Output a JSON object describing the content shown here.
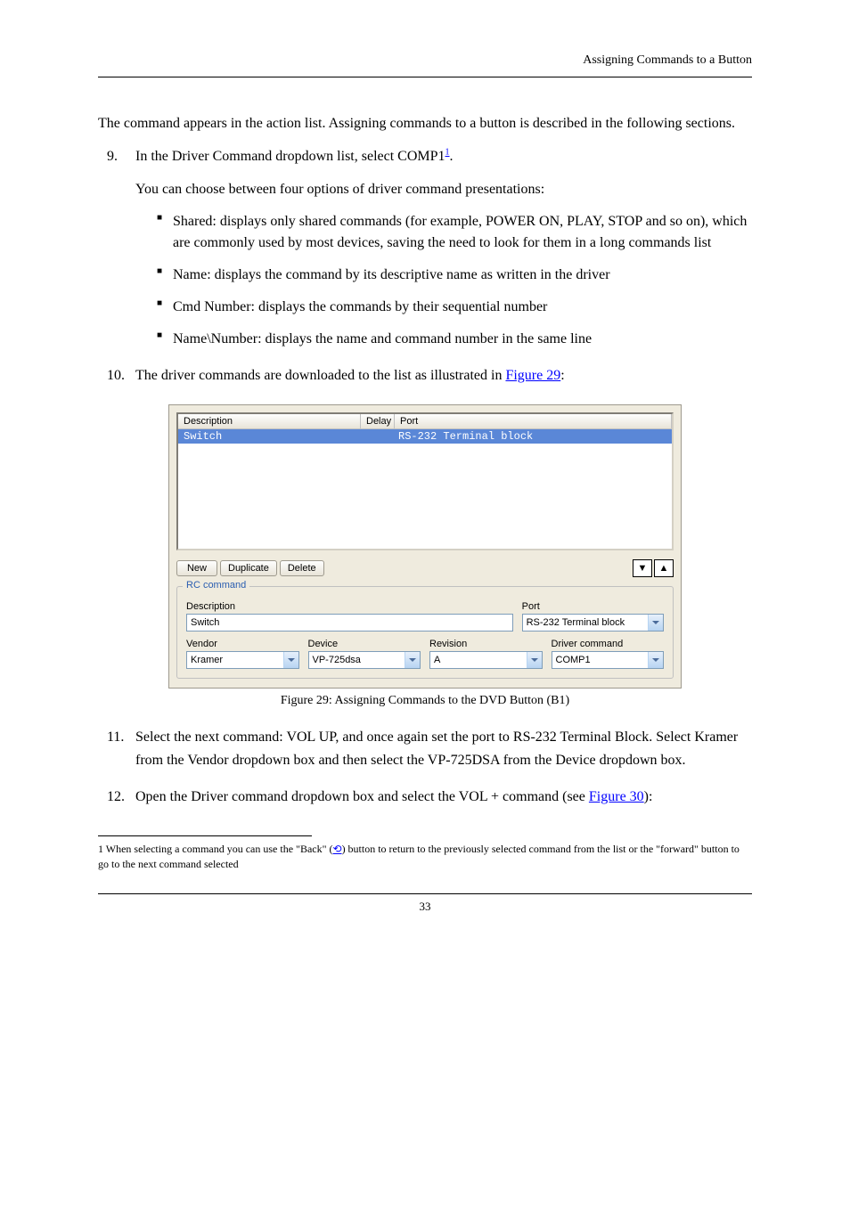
{
  "header": {
    "section_title": "Assigning Commands to a Button"
  },
  "para1": "The command appears in the action list. Assigning commands to a button is described in the following sections.",
  "step9": {
    "num": "9.",
    "prefix": "In the Driver Command dropdown list, select COMP1",
    "sup": "1",
    "suffix": ".",
    "options_intro": "You can choose between four options of driver command presentations:",
    "opts": [
      "Shared: displays only shared commands (for example, POWER ON, PLAY, STOP and so on), which are commonly used by most devices, saving the need to look for them in a long commands list",
      "Name: displays the command by its descriptive name as written in the driver",
      "Cmd Number: displays the commands by their sequential number",
      "Name\\Number: displays the name and command number in the same line"
    ]
  },
  "step10": {
    "num": "10.",
    "text_before": "The driver commands are downloaded to the list as illustrated in ",
    "link": "Figure 29",
    "text_after": ":"
  },
  "screenshot": {
    "list_header": {
      "description": "Description",
      "delay": "Delay",
      "port": "Port"
    },
    "row": {
      "desc": "Switch",
      "delay": "",
      "port": "RS-232 Terminal block"
    },
    "buttons": {
      "new": "New",
      "duplicate": "Duplicate",
      "delete": "Delete"
    },
    "arrows": {
      "down": "▼",
      "up": "▲"
    },
    "rc_group_label": "RC command",
    "row1": {
      "description": {
        "label": "Description",
        "value": "Switch"
      },
      "port": {
        "label": "Port",
        "value": "RS-232 Terminal block"
      }
    },
    "row2": {
      "vendor": {
        "label": "Vendor",
        "value": "Kramer"
      },
      "device": {
        "label": "Device",
        "value": "VP-725dsa"
      },
      "revision": {
        "label": "Revision",
        "value": "A"
      },
      "driver_cmd": {
        "label": "Driver command",
        "value": "COMP1"
      }
    }
  },
  "figure_caption": "Figure 29: Assigning Commands to the DVD Button (B1)",
  "step11": {
    "num": "11.",
    "text": "Select the next command: VOL UP, and once again set the port to RS-232 Terminal Block. Select Kramer from the Vendor dropdown box and then select the VP-725DSA from the Device dropdown box."
  },
  "step12": {
    "num": "12.",
    "text_before": "Open the Driver command dropdown box and select the VOL + command (see ",
    "link": "Figure 30",
    "text_after": "):"
  },
  "footnote": {
    "num": "1",
    "text_before": " When selecting a command you can use the \"Back\" (",
    "icon_label": "back icon",
    "text_after": ") button to return to the previously selected command from the list or the \"forward\" button to go to the next command selected"
  },
  "page_number": "33"
}
